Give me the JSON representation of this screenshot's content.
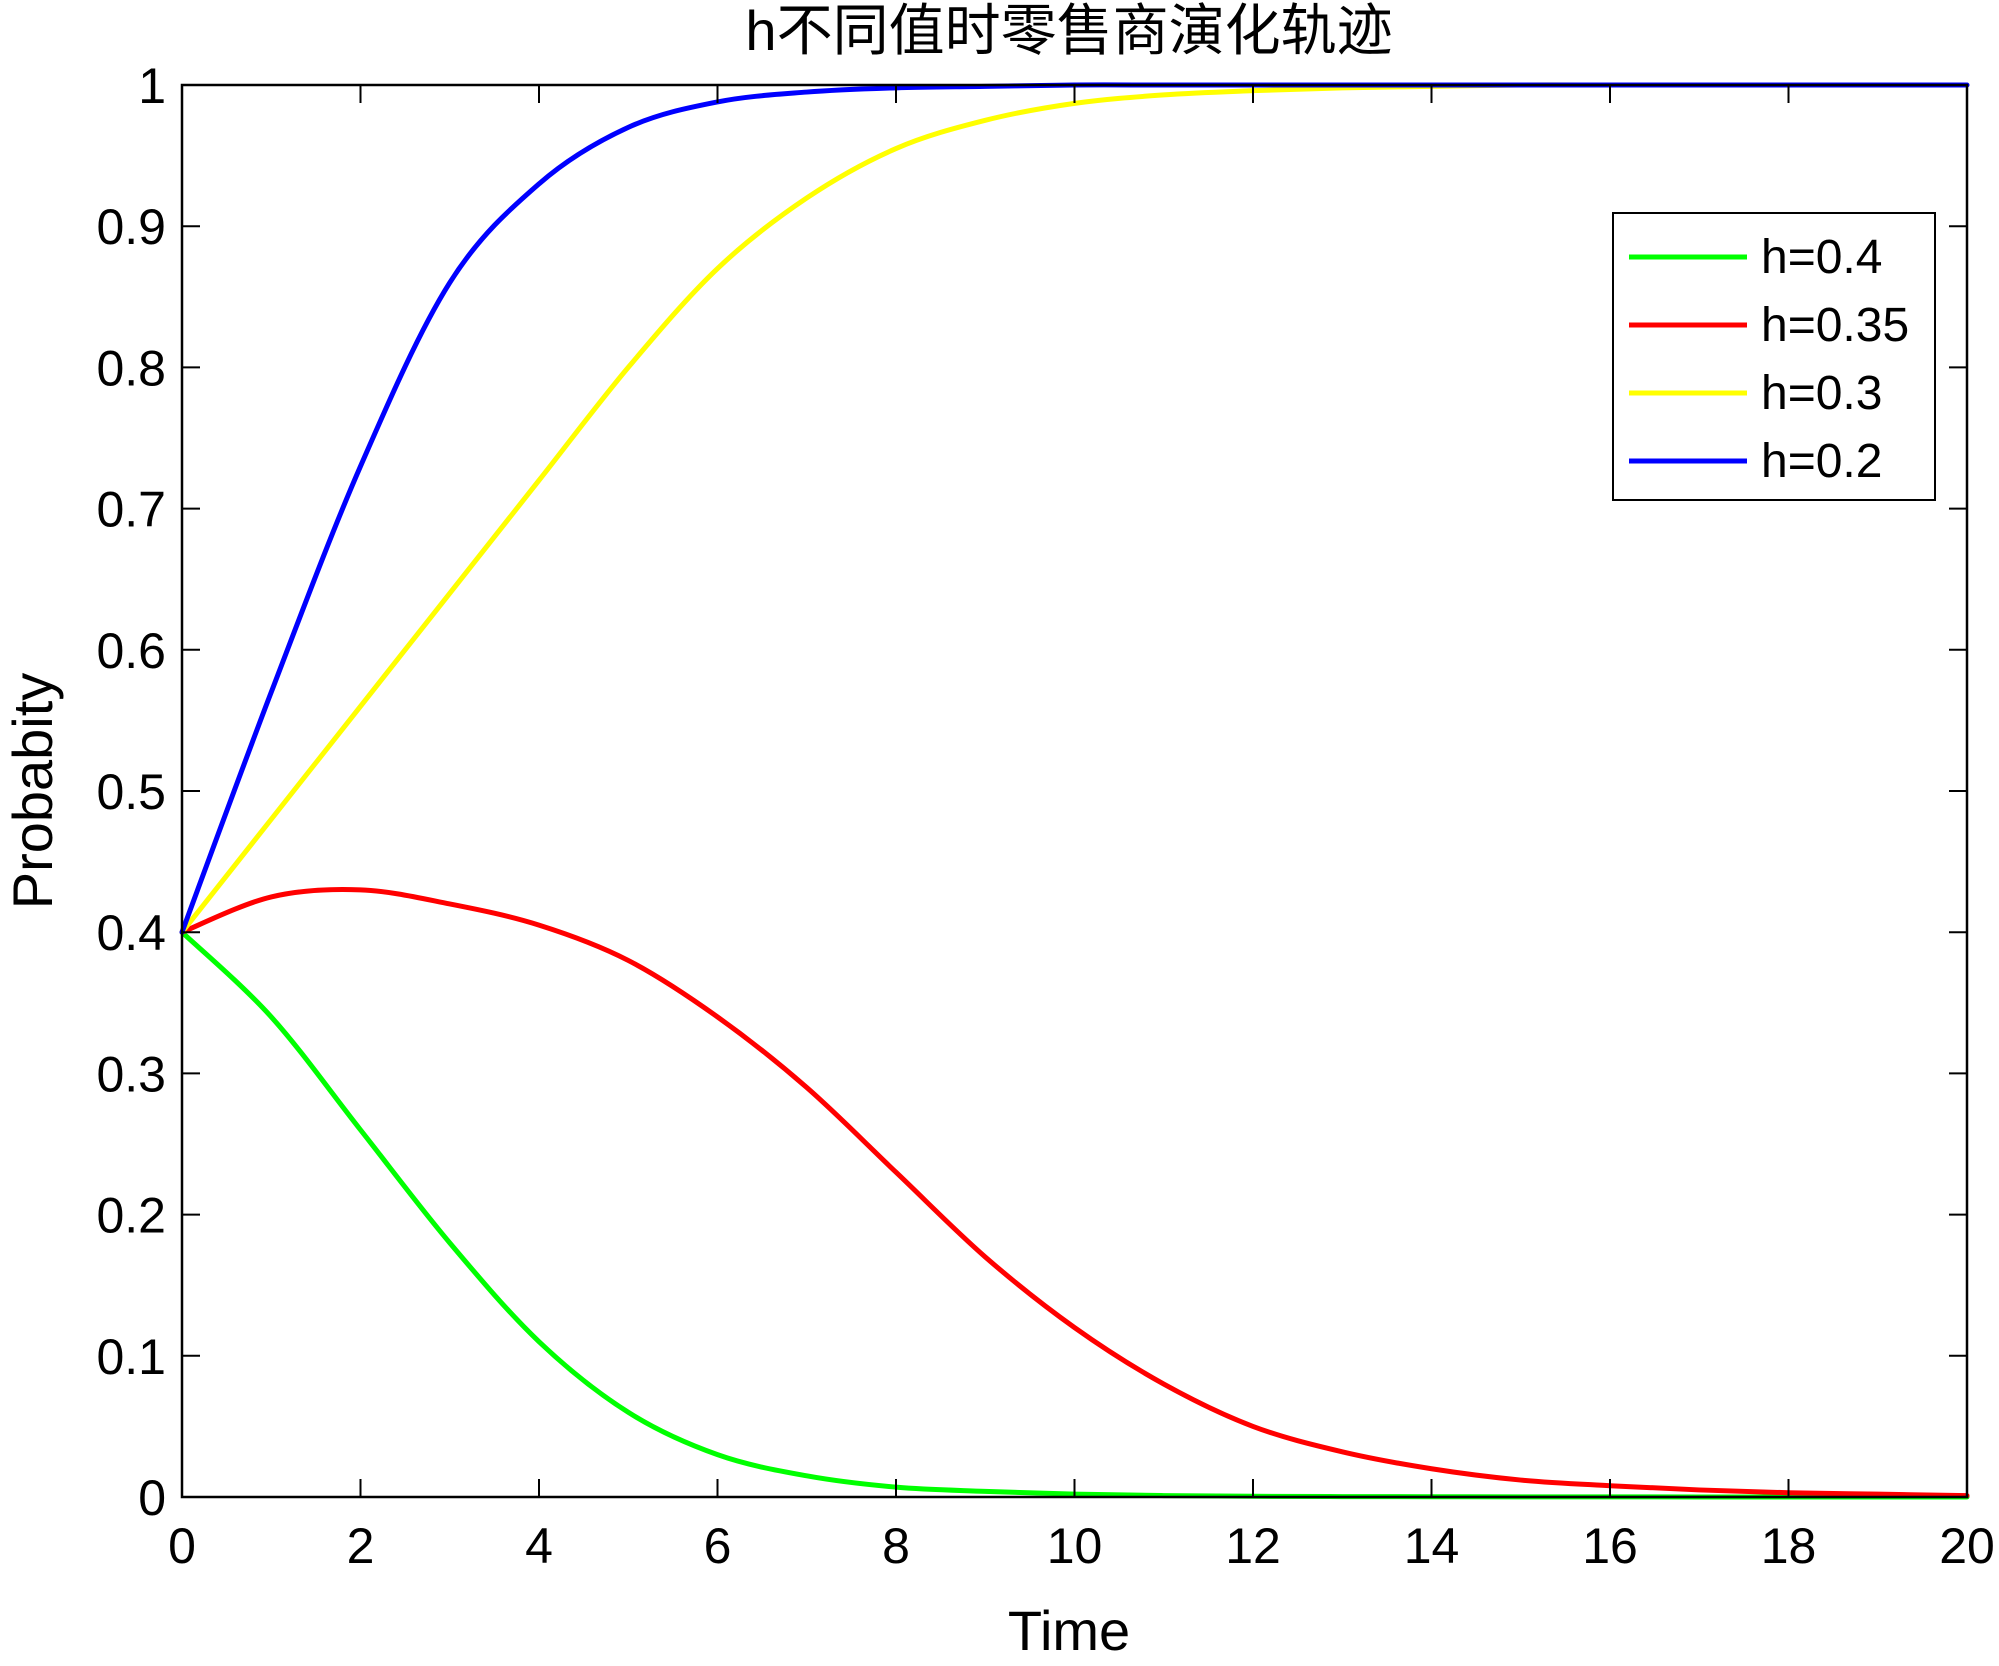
{
  "chart_data": {
    "type": "line",
    "title": "h不同值时零售商演化轨迹",
    "xlabel": "Time",
    "ylabel": "Probabity",
    "xlim": [
      0,
      20
    ],
    "ylim": [
      0,
      1
    ],
    "xticks": [
      0,
      2,
      4,
      6,
      8,
      10,
      12,
      14,
      16,
      18,
      20
    ],
    "yticks": [
      0,
      0.1,
      0.2,
      0.3,
      0.4,
      0.5,
      0.6,
      0.7,
      0.8,
      0.9,
      1
    ],
    "xtick_labels": [
      "0",
      "2",
      "4",
      "6",
      "8",
      "10",
      "12",
      "14",
      "16",
      "18",
      "20"
    ],
    "ytick_labels": [
      "0",
      "0.1",
      "0.2",
      "0.3",
      "0.4",
      "0.5",
      "0.6",
      "0.7",
      "0.8",
      "0.9",
      "1"
    ],
    "grid": false,
    "legend_position": "top-right",
    "x": [
      0,
      1,
      2,
      3,
      4,
      5,
      6,
      7,
      8,
      9,
      10,
      11,
      12,
      13,
      14,
      15,
      16,
      17,
      18,
      19,
      20
    ],
    "series": [
      {
        "name": "h=0.4",
        "color": "#00ff00",
        "values": [
          0.4,
          0.34,
          0.26,
          0.18,
          0.11,
          0.06,
          0.03,
          0.015,
          0.007,
          0.004,
          0.002,
          0.001,
          0.0005,
          0.0003,
          0.0002,
          0.0001,
          0.0001,
          0.0,
          0.0,
          0.0,
          0.0
        ]
      },
      {
        "name": "h=0.35",
        "color": "#ff0000",
        "values": [
          0.4,
          0.425,
          0.43,
          0.42,
          0.405,
          0.38,
          0.34,
          0.29,
          0.23,
          0.17,
          0.12,
          0.08,
          0.05,
          0.032,
          0.02,
          0.012,
          0.008,
          0.005,
          0.003,
          0.002,
          0.001
        ]
      },
      {
        "name": "h=0.3",
        "color": "#ffff00",
        "values": [
          0.4,
          0.48,
          0.56,
          0.64,
          0.72,
          0.8,
          0.87,
          0.92,
          0.955,
          0.975,
          0.987,
          0.993,
          0.996,
          0.998,
          0.999,
          1.0,
          1.0,
          1.0,
          1.0,
          1.0,
          1.0
        ]
      },
      {
        "name": "h=0.2",
        "color": "#0000ff",
        "values": [
          0.4,
          0.57,
          0.73,
          0.86,
          0.93,
          0.97,
          0.988,
          0.995,
          0.998,
          0.999,
          1.0,
          1.0,
          1.0,
          1.0,
          1.0,
          1.0,
          1.0,
          1.0,
          1.0,
          1.0,
          1.0
        ]
      }
    ]
  }
}
